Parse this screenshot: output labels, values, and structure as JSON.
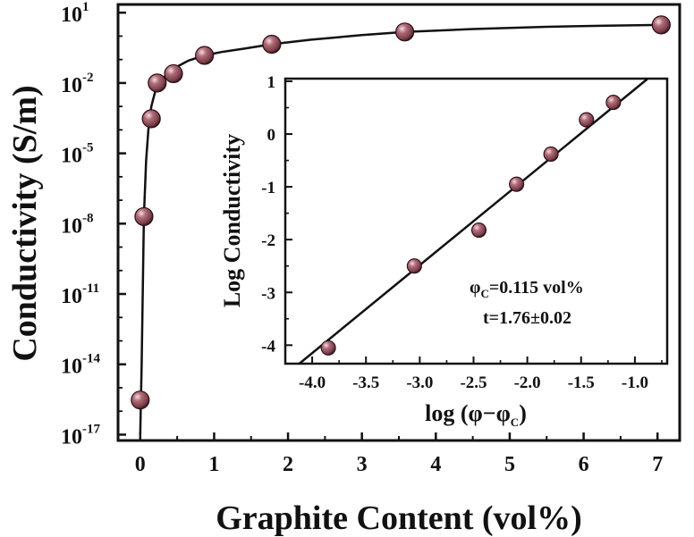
{
  "chart_data": [
    {
      "type": "scatter",
      "title": "",
      "xlabel": "Graphite Content (vol%)",
      "ylabel": "Conductivity (S/m)",
      "y_scale": "log",
      "xlim": [
        -0.3,
        7.3
      ],
      "ylim": [
        1e-17,
        10
      ],
      "x_ticks": [
        "0",
        "1",
        "2",
        "3",
        "4",
        "5",
        "6",
        "7"
      ],
      "y_ticks": [
        {
          "base": "10",
          "exp": "1",
          "value": 10.0
        },
        {
          "base": "10",
          "exp": "-2",
          "value": 0.01
        },
        {
          "base": "10",
          "exp": "-5",
          "value": 1e-05
        },
        {
          "base": "10",
          "exp": "-8",
          "value": 1e-08
        },
        {
          "base": "10",
          "exp": "-11",
          "value": 1e-11
        },
        {
          "base": "10",
          "exp": "-14",
          "value": 1e-14
        },
        {
          "base": "10",
          "exp": "-17",
          "value": 1e-17
        }
      ],
      "marker_color": "#7a3f4a",
      "line_color": "#111111",
      "series": [
        {
          "x": [
            0.0,
            0.05,
            0.15,
            0.23,
            0.45,
            0.87,
            1.78,
            3.58,
            7.05
          ],
          "y": [
            3e-16,
            2e-08,
            0.0003,
            0.01,
            0.025,
            0.15,
            0.45,
            1.5,
            3.0
          ]
        }
      ],
      "fit_curve": {
        "x": [
          0.0,
          0.02,
          0.05,
          0.08,
          0.11,
          0.15,
          0.2,
          0.25,
          0.3,
          0.4,
          0.5,
          0.65,
          0.87,
          1.1,
          1.4,
          1.78,
          2.3,
          3.0,
          3.58,
          4.5,
          5.5,
          6.3,
          7.05
        ],
        "y": [
          1e-17,
          1e-14,
          2e-08,
          5e-06,
          0.0001,
          0.001,
          0.004,
          0.009,
          0.015,
          0.03,
          0.05,
          0.09,
          0.15,
          0.21,
          0.29,
          0.45,
          0.7,
          1.1,
          1.5,
          2.0,
          2.5,
          2.8,
          3.0
        ]
      }
    },
    {
      "type": "scatter",
      "title": "",
      "xlabel_parts": [
        "log (φ−φ",
        "C",
        ")"
      ],
      "ylabel": "Log Conductivity",
      "xlim": [
        -4.25,
        -0.7
      ],
      "ylim": [
        -4.35,
        1.05
      ],
      "x_ticks": [
        "-4.0",
        "-3.5",
        "-3.0",
        "-2.5",
        "-2.0",
        "-1.5",
        "-1.0"
      ],
      "y_ticks": [
        "1",
        "0",
        "-1",
        "-2",
        "-3",
        "-4"
      ],
      "series": [
        {
          "x": [
            -3.85,
            -3.05,
            -2.45,
            -2.1,
            -1.78,
            -1.45,
            -1.2
          ],
          "y": [
            -4.05,
            -2.5,
            -1.82,
            -0.95,
            -0.38,
            0.27,
            0.6
          ]
        }
      ],
      "fit_line": {
        "x": [
          -4.12,
          -0.88
        ],
        "y": [
          -4.35,
          1.05
        ]
      },
      "annotations": [
        {
          "parts": [
            "φ",
            "C",
            "=0.115 vol%"
          ]
        },
        {
          "parts": [
            "t=1.76±0.02"
          ]
        }
      ]
    }
  ]
}
